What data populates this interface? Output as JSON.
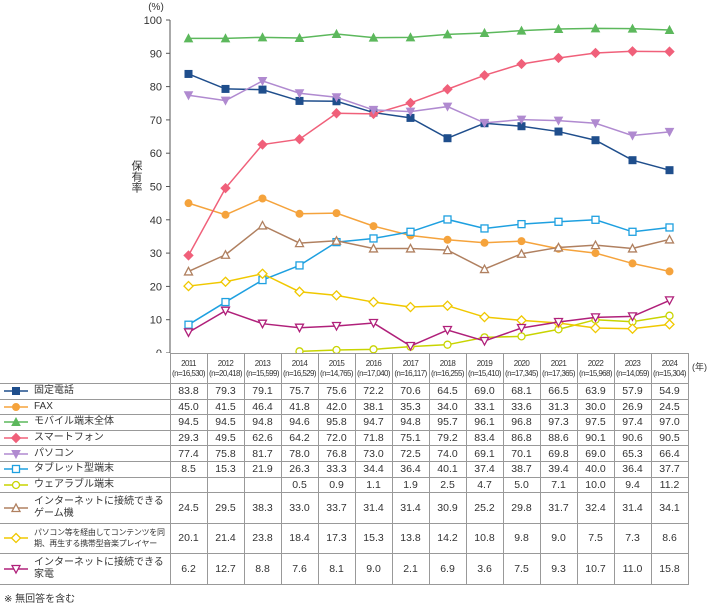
{
  "chart_data": {
    "type": "line",
    "y_unit": "(%)",
    "ylabel": "保有率",
    "x_unit": "(年)",
    "ylim": [
      0,
      100
    ],
    "yticks": [
      0,
      10,
      20,
      30,
      40,
      50,
      60,
      70,
      80,
      90,
      100
    ],
    "grid": false,
    "legend_placement": "table-left",
    "categories": [
      "2011",
      "2012",
      "2013",
      "2014",
      "2015",
      "2016",
      "2017",
      "2018",
      "2019",
      "2020",
      "2021",
      "2022",
      "2023",
      "2024"
    ],
    "sample_sizes": [
      "(n=16,530)",
      "(n=20,418)",
      "(n=15,599)",
      "(n=16,529)",
      "(n=14,765)",
      "(n=17,040)",
      "(n=16,117)",
      "(n=16,255)",
      "(n=15,410)",
      "(n=17,345)",
      "(n=17,365)",
      "(n=15,968)",
      "(n=14,059)",
      "(n=15,304)"
    ],
    "series": [
      {
        "name": "固定電話",
        "color": "#1f4e8c",
        "marker": "square-filled",
        "values": [
          83.8,
          79.3,
          79.1,
          75.7,
          75.6,
          72.2,
          70.6,
          64.5,
          69.0,
          68.1,
          66.5,
          63.9,
          57.9,
          54.9
        ]
      },
      {
        "name": "FAX",
        "color": "#f5a33c",
        "marker": "circle-filled",
        "values": [
          45.0,
          41.5,
          46.4,
          41.8,
          42.0,
          38.1,
          35.3,
          34.0,
          33.1,
          33.6,
          31.3,
          30.0,
          26.9,
          24.5
        ]
      },
      {
        "name": "モバイル端末全体",
        "color": "#5cb85c",
        "marker": "triangle-filled",
        "values": [
          94.5,
          94.5,
          94.8,
          94.6,
          95.8,
          94.7,
          94.8,
          95.7,
          96.1,
          96.8,
          97.3,
          97.5,
          97.4,
          97.0
        ]
      },
      {
        "name": "スマートフォン",
        "color": "#f0607a",
        "marker": "diamond-filled",
        "values": [
          29.3,
          49.5,
          62.6,
          64.2,
          72.0,
          71.8,
          75.1,
          79.2,
          83.4,
          86.8,
          88.6,
          90.1,
          90.6,
          90.5
        ]
      },
      {
        "name": "パソコン",
        "color": "#b08ad0",
        "marker": "triangle-down-filled",
        "values": [
          77.4,
          75.8,
          81.7,
          78.0,
          76.8,
          73.0,
          72.5,
          74.0,
          69.1,
          70.1,
          69.8,
          69.0,
          65.3,
          66.4
        ]
      },
      {
        "name": "タブレット型端末",
        "color": "#1ea0e0",
        "marker": "square-open",
        "values": [
          8.5,
          15.3,
          21.9,
          26.3,
          33.3,
          34.4,
          36.4,
          40.1,
          37.4,
          38.7,
          39.4,
          40.0,
          36.4,
          37.7
        ]
      },
      {
        "name": "ウェアラブル端末",
        "color": "#c8d400",
        "marker": "circle-open",
        "values": [
          null,
          null,
          null,
          0.5,
          0.9,
          1.1,
          1.9,
          2.5,
          4.7,
          5.0,
          7.1,
          10.0,
          9.4,
          11.2
        ]
      },
      {
        "name": "インターネットに接続できるゲーム機",
        "color": "#b08060",
        "marker": "triangle-open",
        "values": [
          24.5,
          29.5,
          38.3,
          33.0,
          33.7,
          31.4,
          31.4,
          30.9,
          25.2,
          29.8,
          31.7,
          32.4,
          31.4,
          34.1
        ]
      },
      {
        "name": "パソコン等を経由してコンテンツを同期、再生する携帯型音楽プレイヤー",
        "color": "#f0c800",
        "marker": "diamond-open",
        "values": [
          20.1,
          21.4,
          23.8,
          18.4,
          17.3,
          15.3,
          13.8,
          14.2,
          10.8,
          9.8,
          9.0,
          7.5,
          7.3,
          8.6
        ]
      },
      {
        "name": "インターネットに接続できる家電",
        "color": "#b0207a",
        "marker": "triangle-down-open",
        "values": [
          6.2,
          12.7,
          8.8,
          7.6,
          8.1,
          9.0,
          2.1,
          6.9,
          3.6,
          7.5,
          9.3,
          10.7,
          11.0,
          15.8
        ]
      }
    ]
  },
  "labels": {
    "row_names": [
      "固定電話",
      "FAX",
      "モバイル端末全体",
      "スマートフォン",
      "パソコン",
      "タブレット型端末",
      "ウェアラブル端末",
      "インターネットに接続できる",
      "ゲーム機",
      "パソコン等を経由してコンテンツを同",
      "期、再生する携帯型音楽プレイヤー",
      "インターネットに接続できる",
      "家電"
    ]
  },
  "footnote": "※ 無回答を含む"
}
